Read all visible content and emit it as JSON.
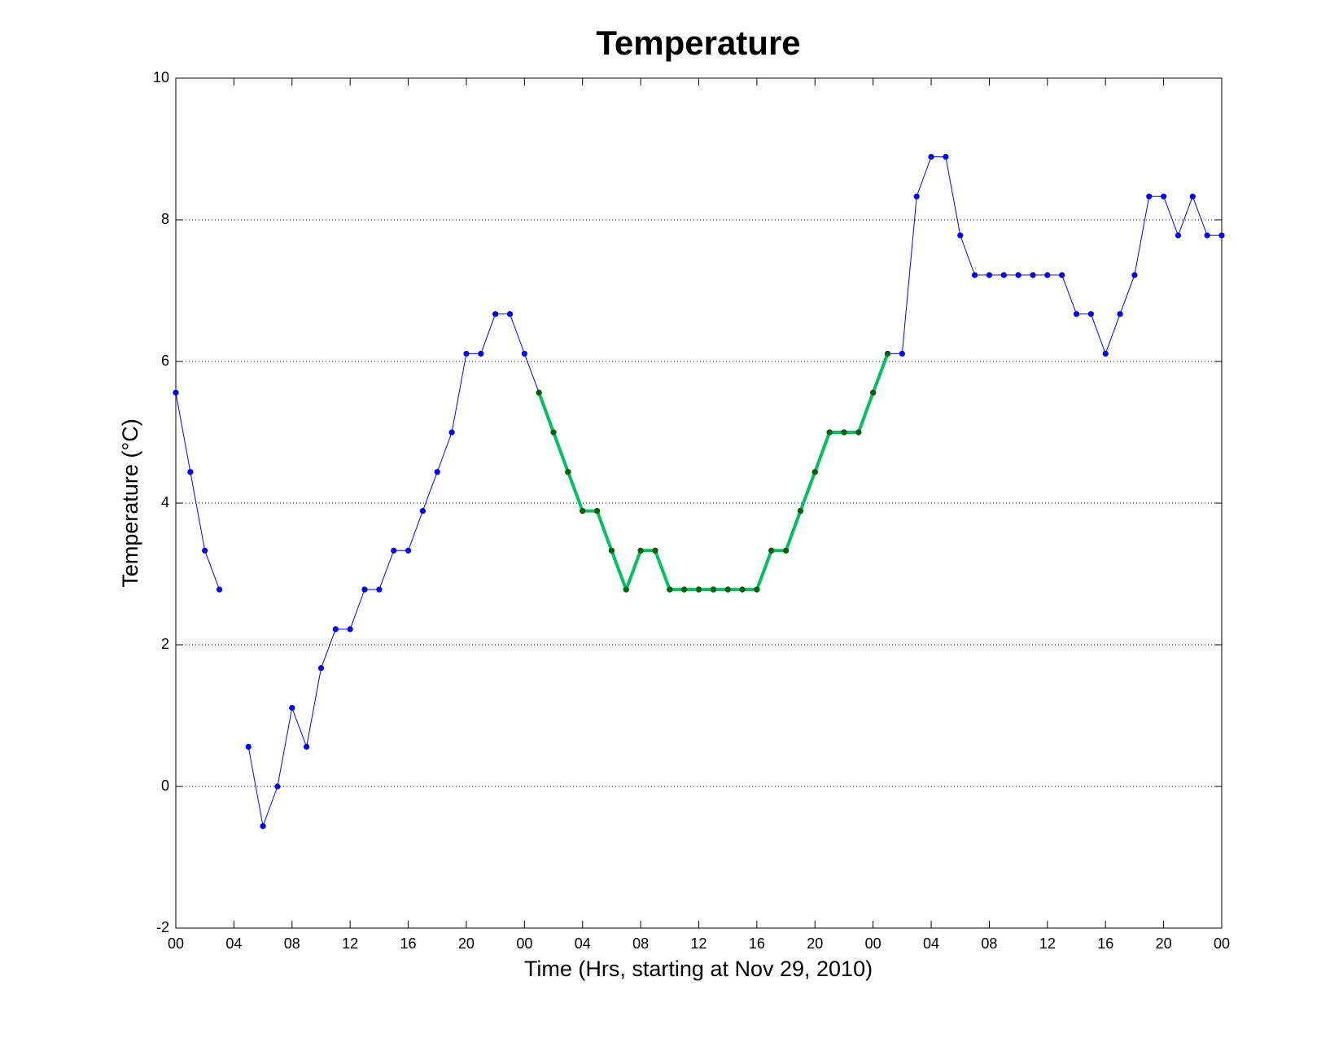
{
  "chart_data": {
    "type": "line",
    "title": "Temperature",
    "xlabel": "Time (Hrs, starting at Nov 29, 2010)",
    "ylabel": "Temperature (°C)",
    "x": [
      0,
      1,
      2,
      3,
      4,
      5,
      6,
      7,
      8,
      9,
      10,
      11,
      12,
      13,
      14,
      15,
      16,
      17,
      18,
      19,
      20,
      21,
      22,
      23,
      24,
      25,
      26,
      27,
      28,
      29,
      30,
      31,
      32,
      33,
      34,
      35,
      36,
      37,
      38,
      39,
      40,
      41,
      42,
      43,
      44,
      45,
      46,
      47,
      48,
      49,
      50,
      51,
      52,
      53,
      54,
      55,
      56,
      57,
      58,
      59,
      60,
      61,
      62,
      63,
      64,
      65,
      66,
      67,
      68,
      69,
      70,
      71,
      72
    ],
    "series": [
      {
        "color": "#0000ff",
        "marker_color": "#0000ff",
        "line_width": 1,
        "values": [
          5.56,
          4.44,
          3.33,
          2.78,
          null,
          0.56,
          -0.56,
          0,
          1.11,
          0.56,
          1.67,
          2.22,
          2.22,
          2.78,
          2.78,
          3.33,
          3.33,
          3.89,
          4.44,
          5.0,
          6.11,
          6.11,
          6.67,
          6.67,
          6.11,
          5.56,
          5.0,
          4.44,
          3.89,
          3.89,
          3.33,
          2.78,
          3.33,
          3.33,
          2.78,
          2.78,
          2.78,
          2.78,
          2.78,
          2.78,
          2.78,
          3.33,
          3.33,
          3.89,
          4.44,
          5.0,
          5.0,
          5.0,
          5.56,
          6.11,
          6.11,
          8.33,
          8.89,
          8.89,
          7.78,
          7.22,
          7.22,
          7.22,
          7.22,
          7.22,
          7.22,
          7.22,
          6.67,
          6.67,
          6.11,
          6.67,
          7.22,
          8.33,
          8.33,
          7.78,
          8.33,
          7.78,
          7.78
        ]
      },
      {
        "color": "#00c060",
        "marker_color": "#006400",
        "line_width": 4,
        "values": [
          null,
          null,
          null,
          null,
          null,
          null,
          null,
          null,
          null,
          null,
          null,
          null,
          null,
          null,
          null,
          null,
          null,
          null,
          null,
          null,
          null,
          null,
          null,
          null,
          null,
          5.56,
          5.0,
          4.44,
          3.89,
          3.89,
          3.33,
          2.78,
          3.33,
          3.33,
          2.78,
          2.78,
          2.78,
          2.78,
          2.78,
          2.78,
          2.78,
          3.33,
          3.33,
          3.89,
          4.44,
          5.0,
          5.0,
          5.0,
          5.56,
          6.11,
          null,
          null,
          null,
          null,
          null,
          null,
          null,
          null,
          null,
          null,
          null,
          null,
          null,
          null,
          null,
          null,
          null,
          null,
          null,
          null,
          null,
          null,
          null
        ]
      }
    ],
    "xlim": [
      0,
      72
    ],
    "xticks": [
      {
        "value": 0,
        "label": "00"
      },
      {
        "value": 4,
        "label": "04"
      },
      {
        "value": 8,
        "label": "08"
      },
      {
        "value": 12,
        "label": "12"
      },
      {
        "value": 16,
        "label": "16"
      },
      {
        "value": 20,
        "label": "20"
      },
      {
        "value": 24,
        "label": "00"
      },
      {
        "value": 28,
        "label": "04"
      },
      {
        "value": 32,
        "label": "08"
      },
      {
        "value": 36,
        "label": "12"
      },
      {
        "value": 40,
        "label": "16"
      },
      {
        "value": 44,
        "label": "20"
      },
      {
        "value": 48,
        "label": "00"
      },
      {
        "value": 52,
        "label": "04"
      },
      {
        "value": 56,
        "label": "08"
      },
      {
        "value": 60,
        "label": "12"
      },
      {
        "value": 64,
        "label": "16"
      },
      {
        "value": 68,
        "label": "20"
      },
      {
        "value": 72,
        "label": "00"
      }
    ],
    "ylim": [
      -2,
      10
    ],
    "yticks": [
      -2,
      0,
      2,
      4,
      6,
      8,
      10
    ],
    "ygrid": true
  }
}
